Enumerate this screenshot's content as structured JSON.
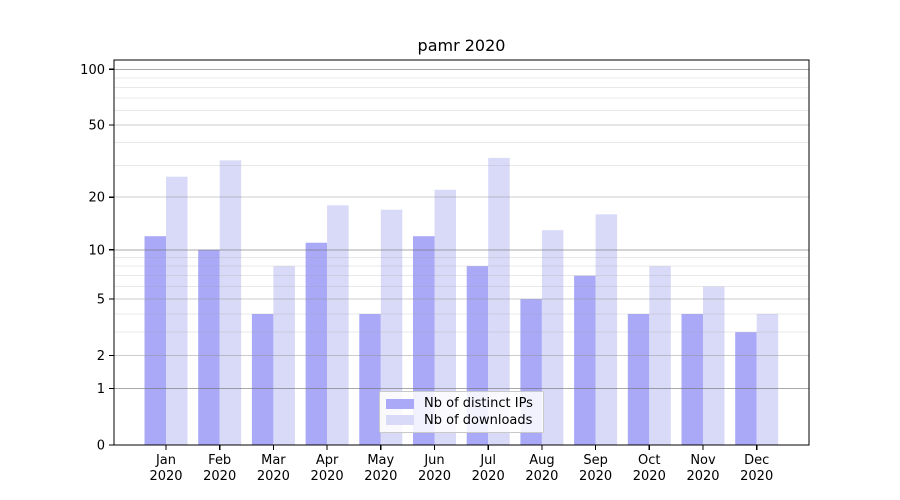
{
  "figure": {
    "background": "#ffffff"
  },
  "colors": {
    "ips_bar": "#a9a9f8",
    "downloads_bar": "#d9d9f8",
    "axis": "#000000",
    "grid_decade": "#6f6f6f",
    "grid_mid": "#8f8f8f",
    "grid_minor": "#9f9f9f",
    "legend_border": "#c9c9c9",
    "text": "#000000"
  },
  "chart_data": {
    "type": "bar",
    "title": "pamr 2020",
    "categories": [
      "Jan 2020",
      "Feb 2020",
      "Mar 2020",
      "Apr 2020",
      "May 2020",
      "Jun 2020",
      "Jul 2020",
      "Aug 2020",
      "Sep 2020",
      "Oct 2020",
      "Nov 2020",
      "Dec 2020"
    ],
    "series": [
      {
        "name": "Nb of distinct IPs",
        "values": [
          12,
          10,
          4,
          11,
          4,
          12,
          8,
          5,
          7,
          4,
          4,
          3
        ]
      },
      {
        "name": "Nb of downloads",
        "values": [
          26,
          32,
          8,
          18,
          17,
          22,
          33,
          13,
          16,
          8,
          6,
          4
        ]
      }
    ],
    "xlabel": "",
    "ylabel": "",
    "yscale": "log1p",
    "ylim": [
      0,
      113
    ],
    "y_ticks": [
      0,
      1,
      2,
      5,
      10,
      20,
      50,
      100
    ],
    "y_minor_ticks": [
      3,
      4,
      6,
      7,
      8,
      9,
      30,
      40,
      60,
      70,
      80,
      90
    ],
    "grid": true,
    "legend_position": "lower center inside"
  }
}
